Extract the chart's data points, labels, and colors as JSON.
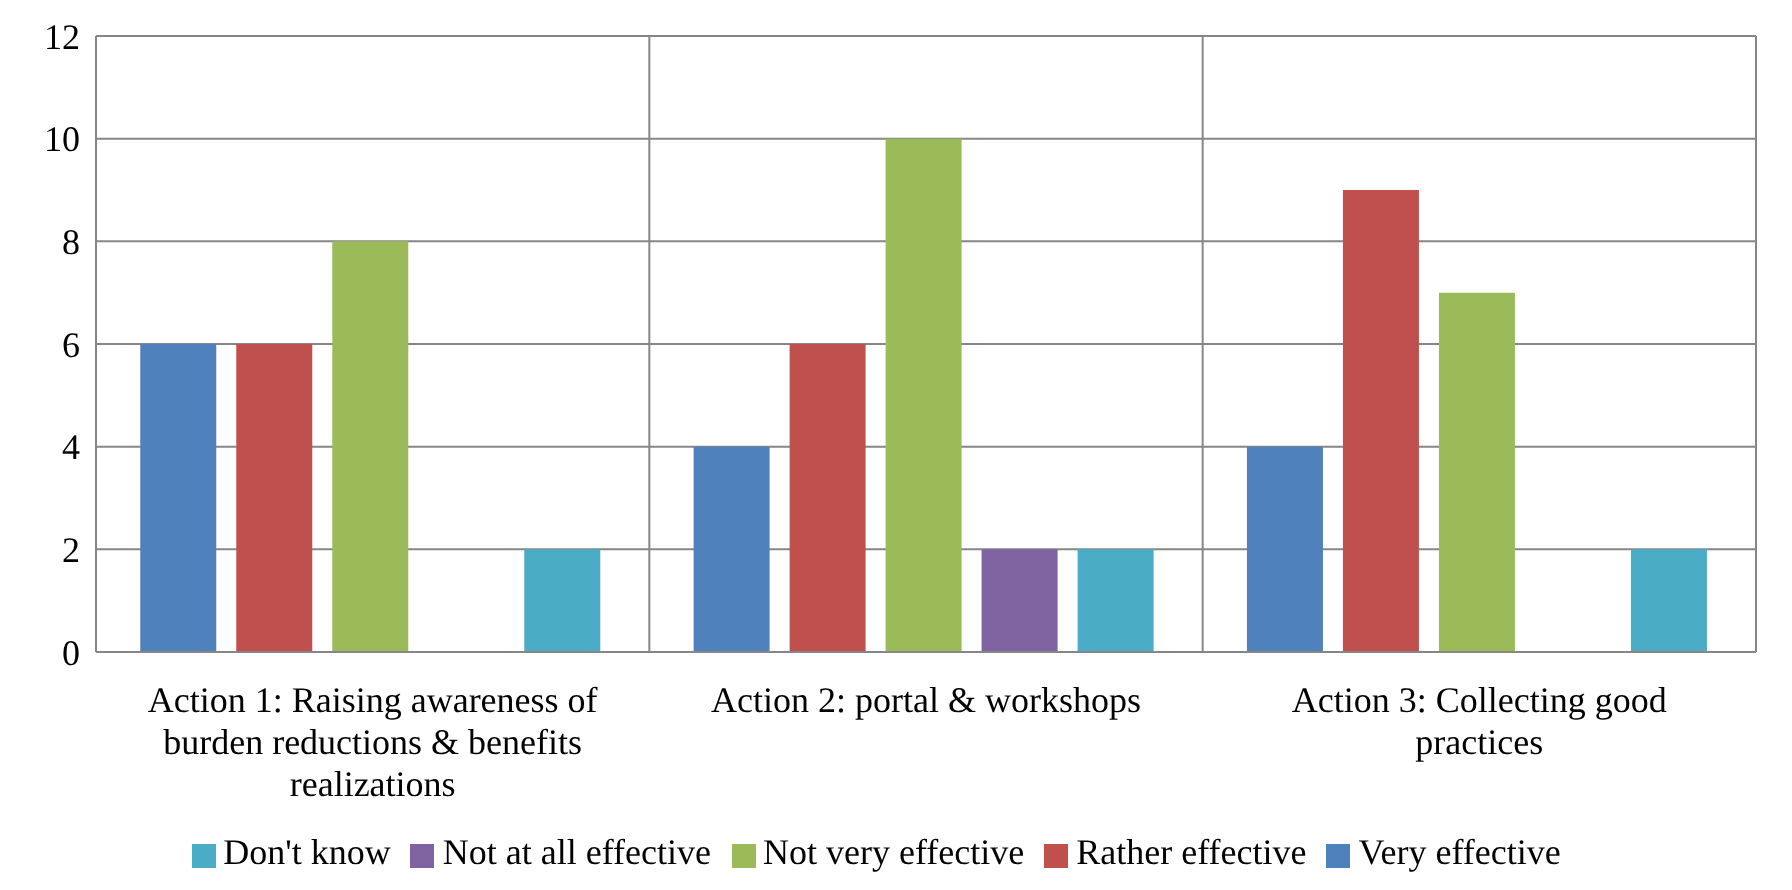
{
  "chart_data": {
    "type": "bar",
    "categories": [
      "Action 1: Raising awareness of burden reductions & benefits realizations",
      "Action 2: portal & workshops",
      "Action 3: Collecting good practices"
    ],
    "series": [
      {
        "name": "Very effective",
        "color": "#4f81bd",
        "values": [
          6,
          4,
          4
        ]
      },
      {
        "name": "Rather effective",
        "color": "#c0504d",
        "values": [
          6,
          6,
          9
        ]
      },
      {
        "name": "Not very effective",
        "color": "#9bbb59",
        "values": [
          8,
          10,
          7
        ]
      },
      {
        "name": "Not at all effective",
        "color": "#8064a2",
        "values": [
          null,
          2,
          null
        ]
      },
      {
        "name": "Don't know",
        "color": "#4bacc6",
        "values": [
          2,
          2,
          2
        ]
      }
    ],
    "ylim": [
      0,
      12
    ],
    "yticks": [
      0,
      2,
      4,
      6,
      8,
      10,
      12
    ],
    "grid": true,
    "legend": "bottom"
  }
}
